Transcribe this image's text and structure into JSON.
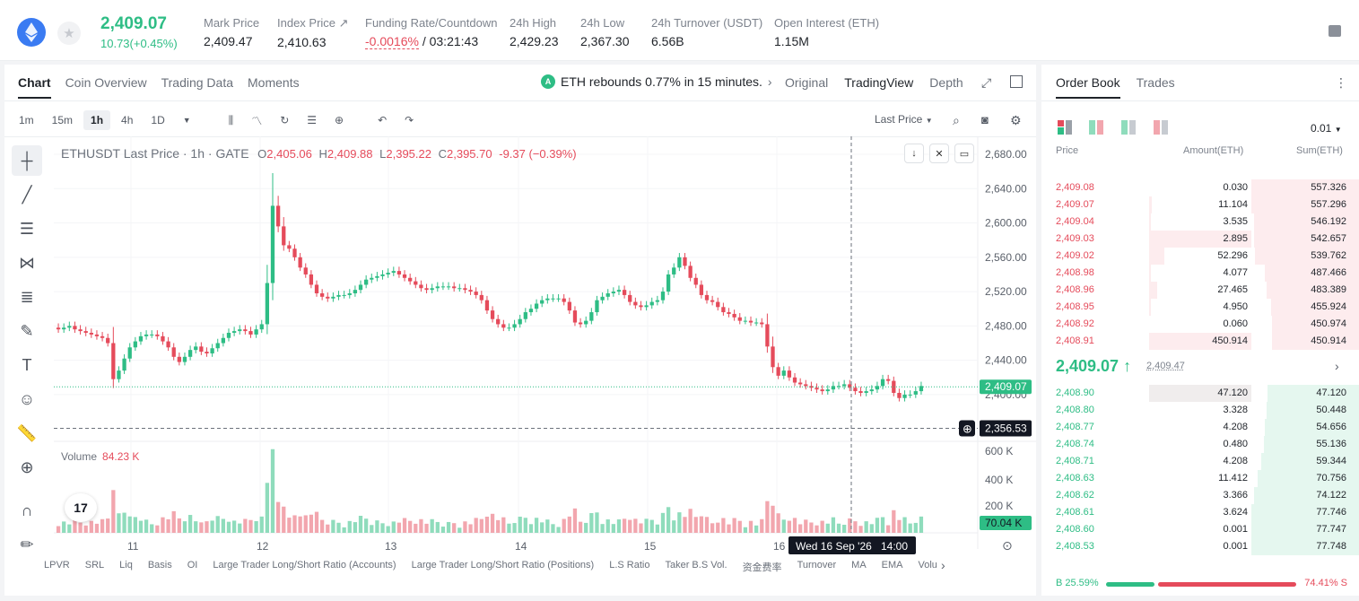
{
  "ticker": {
    "last_price": "2,409.07",
    "change": "10.73(+0.45%)",
    "stats": [
      {
        "label": "Mark Price",
        "value": "2,409.47"
      },
      {
        "label": "Index Price ↗",
        "value": "2,410.63"
      },
      {
        "label": "Funding Rate/Countdown",
        "value_neg": "-0.0016%",
        "value": " / 03:21:43"
      },
      {
        "label": "24h High",
        "value": "2,429.23"
      },
      {
        "label": "24h Low",
        "value": "2,367.30"
      },
      {
        "label": "24h Turnover (USDT)",
        "value": "6.56B"
      },
      {
        "label": "Open Interest (ETH)",
        "value": "1.15M"
      }
    ]
  },
  "chart_panel": {
    "tabs": [
      "Chart",
      "Coin Overview",
      "Trading Data",
      "Moments"
    ],
    "news": "ETH rebounds 0.77% in 15 minutes.",
    "views": [
      "Original",
      "TradingView",
      "Depth"
    ],
    "timeframes": [
      "1m",
      "15m",
      "1h",
      "4h",
      "1D"
    ],
    "price_type": "Last Price",
    "ohlc": {
      "title": "ETHUSDT Last Price · 1h · GATE",
      "o": "2,405.06",
      "h": "2,409.88",
      "l": "2,395.22",
      "c": "2,395.70",
      "chg": "-9.37 (−0.39%)"
    },
    "volume_label": "Volume",
    "volume_value": "84.23 K",
    "price_axis": [
      "2,680.00",
      "2,640.00",
      "2,600.00",
      "2,560.00",
      "2,520.00",
      "2,480.00",
      "2,440.00",
      "2,400.00"
    ],
    "volume_axis": [
      "600 K",
      "400 K",
      "200 K"
    ],
    "last_tag": "2,409.07",
    "crosshair_tag": "2,356.53",
    "volume_tag": "70.04 K",
    "x_labels": [
      "11",
      "12",
      "13",
      "14",
      "15",
      "16"
    ],
    "crosshair_time": "Wed 16 Sep '26",
    "crosshair_hour": "14:00",
    "indicators": [
      "LPVR",
      "SRL",
      "Liq",
      "Basis",
      "OI",
      "Large Trader Long/Short Ratio (Accounts)",
      "Large Trader Long/Short Ratio (Positions)",
      "L.S Ratio",
      "Taker B.S Vol.",
      "资金费率",
      "Turnover",
      "MA",
      "EMA",
      "Volu"
    ],
    "colors": {
      "up": "#2ebd85",
      "down": "#e54b5b"
    }
  },
  "chart_data": {
    "type": "candlestick",
    "title": "ETHUSDT Last Price · 1h · GATE",
    "ylim": [
      2356,
      2680
    ],
    "x_ticks": [
      "11",
      "12",
      "13",
      "14",
      "15",
      "16"
    ],
    "closes": [
      2476,
      2478,
      2480,
      2476,
      2474,
      2472,
      2470,
      2468,
      2466,
      2460,
      2418,
      2428,
      2442,
      2455,
      2462,
      2468,
      2470,
      2470,
      2468,
      2462,
      2455,
      2444,
      2438,
      2444,
      2452,
      2456,
      2450,
      2448,
      2454,
      2460,
      2466,
      2472,
      2474,
      2476,
      2474,
      2470,
      2476,
      2482,
      2530,
      2620,
      2596,
      2574,
      2570,
      2560,
      2548,
      2540,
      2528,
      2518,
      2514,
      2512,
      2514,
      2516,
      2516,
      2518,
      2522,
      2528,
      2534,
      2536,
      2538,
      2540,
      2542,
      2544,
      2540,
      2536,
      2532,
      2528,
      2524,
      2522,
      2524,
      2526,
      2526,
      2526,
      2524,
      2524,
      2522,
      2520,
      2516,
      2510,
      2498,
      2488,
      2482,
      2478,
      2478,
      2482,
      2488,
      2496,
      2500,
      2506,
      2510,
      2512,
      2512,
      2512,
      2508,
      2498,
      2484,
      2482,
      2486,
      2496,
      2510,
      2514,
      2518,
      2520,
      2522,
      2516,
      2508,
      2504,
      2502,
      2504,
      2508,
      2510,
      2520,
      2540,
      2548,
      2560,
      2550,
      2536,
      2528,
      2516,
      2510,
      2508,
      2502,
      2496,
      2494,
      2490,
      2486,
      2486,
      2484,
      2484,
      2482,
      2456,
      2432,
      2422,
      2428,
      2420,
      2414,
      2412,
      2410,
      2408,
      2406,
      2404,
      2406,
      2410,
      2410,
      2412,
      2408,
      2404,
      2402,
      2404,
      2406,
      2410,
      2418,
      2416,
      2402,
      2396,
      2400,
      2400,
      2404,
      2410
    ],
    "volume_ylim": [
      0,
      700
    ]
  },
  "order_book": {
    "tabs": [
      "Order Book",
      "Trades"
    ],
    "precision": "0.01",
    "headers": [
      "Price",
      "Amount(ETH)",
      "Sum(ETH)"
    ],
    "asks": [
      {
        "p": "2,409.08",
        "a": "0.030",
        "s": "557.326",
        "af": 0.0,
        "sf": 0.88
      },
      {
        "p": "2,409.07",
        "a": "11.104",
        "s": "557.296",
        "af": 0.02,
        "sf": 0.88
      },
      {
        "p": "2,409.04",
        "a": "3.535",
        "s": "546.192",
        "af": 0.01,
        "sf": 0.86
      },
      {
        "p": "2,409.03",
        "a": "2.895",
        "s": "542.657",
        "af": 0.66,
        "sf": 0.86
      },
      {
        "p": "2,409.02",
        "a": "52.296",
        "s": "539.762",
        "af": 0.1,
        "sf": 0.85
      },
      {
        "p": "2,408.98",
        "a": "4.077",
        "s": "487.466",
        "af": 0.01,
        "sf": 0.77
      },
      {
        "p": "2,408.96",
        "a": "27.465",
        "s": "483.389",
        "af": 0.05,
        "sf": 0.76
      },
      {
        "p": "2,408.95",
        "a": "4.950",
        "s": "455.924",
        "af": 0.01,
        "sf": 0.72
      },
      {
        "p": "2,408.92",
        "a": "0.060",
        "s": "450.974",
        "af": 0.0,
        "sf": 0.71
      },
      {
        "p": "2,408.91",
        "a": "450.914",
        "s": "450.914",
        "af": 0.66,
        "sf": 0.71
      }
    ],
    "mid_price": "2,409.07 ↑",
    "mark_price": "2,409.47",
    "bids": [
      {
        "p": "2,408.90",
        "a": "47.120",
        "s": "47.120",
        "af": 0.66,
        "sf": 0.75
      },
      {
        "p": "2,408.80",
        "a": "3.328",
        "s": "50.448",
        "af": 0.0,
        "sf": 0.76
      },
      {
        "p": "2,408.77",
        "a": "4.208",
        "s": "54.656",
        "af": 0.0,
        "sf": 0.77
      },
      {
        "p": "2,408.74",
        "a": "0.480",
        "s": "55.136",
        "af": 0.0,
        "sf": 0.78
      },
      {
        "p": "2,408.71",
        "a": "4.208",
        "s": "59.344",
        "af": 0.0,
        "sf": 0.8
      },
      {
        "p": "2,408.63",
        "a": "11.412",
        "s": "70.756",
        "af": 0.0,
        "sf": 0.83
      },
      {
        "p": "2,408.62",
        "a": "3.366",
        "s": "74.122",
        "af": 0.0,
        "sf": 0.86
      },
      {
        "p": "2,408.61",
        "a": "3.624",
        "s": "77.746",
        "af": 0.0,
        "sf": 0.88
      },
      {
        "p": "2,408.60",
        "a": "0.001",
        "s": "77.747",
        "af": 0.0,
        "sf": 0.88
      },
      {
        "p": "2,408.53",
        "a": "0.001",
        "s": "77.748",
        "af": 0.0,
        "sf": 0.88
      }
    ],
    "buy_ratio": "B 25.59%",
    "sell_ratio": "74.41% S",
    "buy_fraction": 0.2559
  }
}
